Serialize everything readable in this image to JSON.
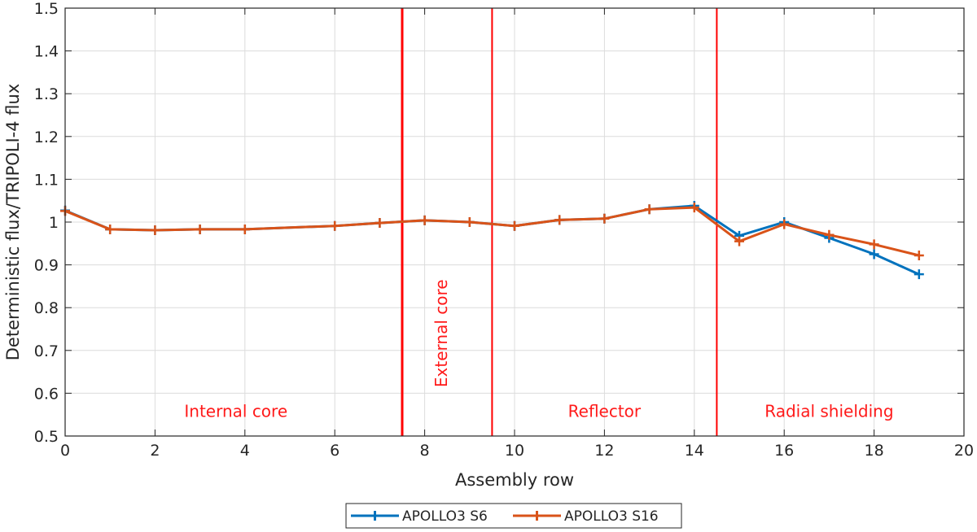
{
  "chart_data": {
    "type": "line",
    "xlabel": "Assembly row",
    "ylabel": "Deterministic flux/TRIPOLI-4 flux",
    "xlim": [
      0,
      20
    ],
    "ylim": [
      0.5,
      1.5
    ],
    "xticks": [
      0,
      2,
      4,
      6,
      8,
      10,
      12,
      14,
      16,
      18,
      20
    ],
    "yticks": [
      0.5,
      0.6,
      0.7,
      0.8,
      0.9,
      1,
      1.1,
      1.2,
      1.3,
      1.4,
      1.5
    ],
    "xtick_labels": [
      "0",
      "2",
      "4",
      "6",
      "8",
      "10",
      "12",
      "14",
      "16",
      "18",
      "20"
    ],
    "ytick_labels": [
      "0.5",
      "0.6",
      "0.7",
      "0.8",
      "0.9",
      "1",
      "1.1",
      "1.2",
      "1.3",
      "1.4",
      "1.5"
    ],
    "grid": true,
    "legend_position": "bottom-center",
    "series": [
      {
        "name": "APOLLO3 S6",
        "color": "#0072bd",
        "x": [
          0,
          1,
          2,
          3,
          4,
          6,
          7,
          8,
          9,
          10,
          11,
          12,
          13,
          14,
          15,
          16,
          17,
          18,
          19
        ],
        "values": [
          1.027,
          0.983,
          0.981,
          0.983,
          0.983,
          0.991,
          0.998,
          1.004,
          1.0,
          0.991,
          1.005,
          1.008,
          1.03,
          1.038,
          0.968,
          1.0,
          0.963,
          0.925,
          0.878
        ]
      },
      {
        "name": "APOLLO3 S16",
        "color": "#d95319",
        "x": [
          0,
          1,
          2,
          3,
          4,
          6,
          7,
          8,
          9,
          10,
          11,
          12,
          13,
          14,
          15,
          16,
          17,
          18,
          19
        ],
        "values": [
          1.026,
          0.983,
          0.981,
          0.983,
          0.983,
          0.991,
          0.998,
          1.004,
          1.0,
          0.991,
          1.005,
          1.008,
          1.03,
          1.034,
          0.955,
          0.995,
          0.97,
          0.948,
          0.922
        ]
      }
    ],
    "vertical_lines": [
      {
        "x": 7.5,
        "color": "#ff0000",
        "width": 3
      },
      {
        "x": 9.5,
        "color": "#ff0000",
        "width": 2
      },
      {
        "x": 14.5,
        "color": "#ff0000",
        "width": 2
      }
    ],
    "annotations": [
      {
        "text": "Internal core",
        "x": 3.8,
        "y": 0.545,
        "rotate": 0
      },
      {
        "text": "External core",
        "x": 8.5,
        "y": 0.74,
        "rotate": -90
      },
      {
        "text": "Reflector",
        "x": 12.0,
        "y": 0.545,
        "rotate": 0
      },
      {
        "text": "Radial shielding",
        "x": 17.0,
        "y": 0.545,
        "rotate": 0
      }
    ]
  }
}
